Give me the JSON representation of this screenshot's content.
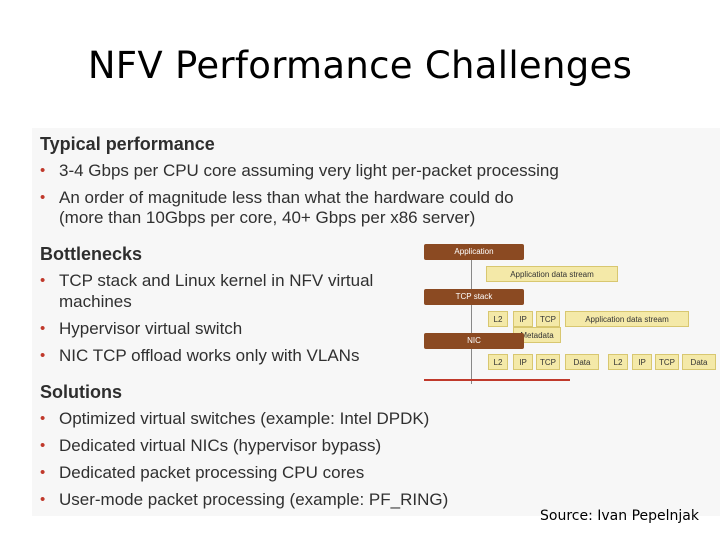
{
  "slide": {
    "title": "NFV Performance Challenges",
    "source": "Source: Ivan Pepelnjak"
  },
  "sections": {
    "typical": {
      "heading": "Typical performance",
      "bullets": [
        "3-4 Gbps per CPU core assuming very light per-packet processing",
        "An order of magnitude less than what the hardware could do",
        "(more than 10Gbps per core, 40+ Gbps per x86 server)"
      ]
    },
    "bottlenecks": {
      "heading": "Bottlenecks",
      "bullets": [
        "TCP stack and Linux kernel in NFV virtual",
        "machines",
        "Hypervisor virtual switch",
        "NIC TCP offload works only with VLANs"
      ]
    },
    "solutions": {
      "heading": "Solutions",
      "bullets": [
        "Optimized virtual switches (example: Intel DPDK)",
        "Dedicated virtual NICs (hypervisor bypass)",
        "Dedicated packet processing CPU cores",
        "User-mode packet processing (example: PF_RING)"
      ]
    }
  },
  "bullet_glyph": "•",
  "diagram": {
    "application": "Application",
    "app_stream": "Application data stream",
    "tcp_stack": "TCP stack",
    "row2": [
      "L2",
      "IP",
      "TCP",
      "Application data stream"
    ],
    "metadata": "Metadata",
    "nic": "NIC",
    "row3a": [
      "L2",
      "IP",
      "TCP",
      "Data"
    ],
    "row3b": [
      "L2",
      "IP",
      "TCP",
      "Data"
    ]
  },
  "colors": {
    "layer_box": "#8b4a22",
    "header_box": "#f4e9a8",
    "bullet": "#c0392b"
  }
}
